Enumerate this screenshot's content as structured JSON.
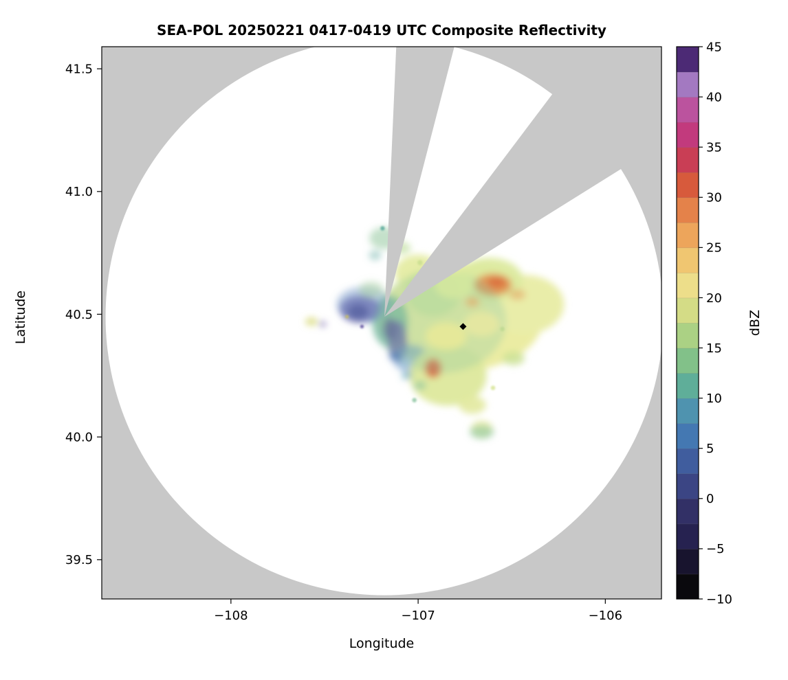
{
  "chart_data": {
    "type": "heatmap",
    "title": "SEA-POL 20250221 0417-0419 UTC Composite Reflectivity",
    "xlabel": "Longitude",
    "ylabel": "Latitude",
    "xlim": [
      -108.69,
      -105.7
    ],
    "ylim": [
      39.34,
      41.59
    ],
    "xticks": {
      "values": [
        -108,
        -107,
        -106
      ],
      "labels": [
        "−108",
        "−107",
        "−106"
      ]
    },
    "yticks": {
      "values": [
        39.5,
        40.0,
        40.5,
        41.0,
        41.5
      ],
      "labels": [
        "39.5",
        "40.0",
        "40.5",
        "41.0",
        "41.5"
      ]
    },
    "background_color": "#c8c8c8",
    "coverage": {
      "center_lon": -107.18,
      "center_lat": 40.49,
      "radius_lat_deg": 1.135,
      "fill": "#ffffff"
    },
    "blocked_sectors": [
      {
        "az_start": 2.5,
        "az_end": 14.5
      },
      {
        "az_start": 37.0,
        "az_end": 58.0
      }
    ],
    "site_marker": {
      "lon": -106.76,
      "lat": 40.45,
      "color": "#000000",
      "size": 5
    },
    "colorbar": {
      "label": "dBZ",
      "min": -10,
      "max": 45,
      "ticks": {
        "values": [
          -10,
          -5,
          0,
          5,
          10,
          15,
          20,
          25,
          30,
          35,
          40,
          45
        ],
        "labels": [
          "−10",
          "−5",
          "0",
          "5",
          "10",
          "15",
          "20",
          "25",
          "30",
          "35",
          "40",
          "45"
        ]
      },
      "colors": [
        "#0a090d",
        "#18142e",
        "#262250",
        "#323066",
        "#3b4584",
        "#405d9e",
        "#4478b2",
        "#4f93af",
        "#5fae99",
        "#82c189",
        "#abd184",
        "#d4dc86",
        "#eddE8a",
        "#f0c671",
        "#eda55b",
        "#e4824a",
        "#d75a3c",
        "#c93e55",
        "#c23a7d",
        "#bb539e",
        "#a379c1",
        "#4c2a75"
      ]
    },
    "echoes_soft": [
      [
        -106.77,
        40.49,
        0.44,
        0.22,
        "#ebeca3",
        1.0
      ],
      [
        -106.43,
        40.54,
        0.21,
        0.12,
        "#e9eda9",
        1.0
      ],
      [
        -106.62,
        40.64,
        0.18,
        0.09,
        "#dcea9f",
        0.95
      ],
      [
        -106.6,
        40.62,
        0.1,
        0.045,
        "#e1904f",
        0.9
      ],
      [
        -106.58,
        40.63,
        0.05,
        0.022,
        "#d96c3b",
        0.85
      ],
      [
        -107.0,
        40.67,
        0.125,
        0.073,
        "#e3eb9f",
        0.9
      ],
      [
        -106.92,
        40.59,
        0.147,
        0.098,
        "#cfe69b",
        0.8
      ],
      [
        -107.15,
        40.47,
        0.096,
        0.106,
        "#6fb39b",
        0.75
      ],
      [
        -107.31,
        40.52,
        0.11,
        0.056,
        "#7b6cae",
        0.85
      ],
      [
        -107.32,
        40.51,
        0.055,
        0.031,
        "#4e4187",
        0.9
      ],
      [
        -107.29,
        40.54,
        0.147,
        0.073,
        "#6a93c5",
        0.45
      ],
      [
        -107.11,
        40.39,
        0.051,
        0.084,
        "#6f63a9",
        0.85
      ],
      [
        -107.15,
        40.44,
        0.037,
        0.045,
        "#5a4f96",
        0.8
      ],
      [
        -107.04,
        40.32,
        0.096,
        0.056,
        "#6191c6",
        0.55
      ],
      [
        -106.84,
        40.25,
        0.206,
        0.123,
        "#dde89c",
        0.95
      ],
      [
        -106.92,
        40.28,
        0.044,
        0.039,
        "#dd6540",
        0.95
      ],
      [
        -106.88,
        40.47,
        0.35,
        0.21,
        "#8cc6a4",
        0.3
      ],
      [
        -106.71,
        40.13,
        0.073,
        0.036,
        "#e2e99e",
        0.9
      ],
      [
        -106.66,
        40.03,
        0.059,
        0.036,
        "#e9eca6",
        0.95
      ],
      [
        -106.66,
        40.02,
        0.066,
        0.028,
        "#7bbfa6",
        0.5
      ],
      [
        -106.49,
        40.32,
        0.059,
        0.028,
        "#cbe295",
        0.85
      ],
      [
        -107.18,
        40.81,
        0.081,
        0.045,
        "#93c89e",
        0.55
      ],
      [
        -107.09,
        40.77,
        0.051,
        0.025,
        "#b8da91",
        0.6
      ],
      [
        -107.23,
        40.74,
        0.033,
        0.02,
        "#6fb3ab",
        0.5
      ],
      [
        -107.57,
        40.47,
        0.033,
        0.017,
        "#d8d978",
        0.8
      ],
      [
        -107.51,
        40.46,
        0.018,
        0.011,
        "#8071b2",
        0.8
      ],
      [
        -106.71,
        40.55,
        0.037,
        0.02,
        "#e6a263",
        0.6
      ],
      [
        -106.47,
        40.58,
        0.044,
        0.022,
        "#e4a05e",
        0.55
      ],
      [
        -106.85,
        40.41,
        0.11,
        0.056,
        "#f0eb94",
        0.7
      ],
      [
        -106.66,
        40.46,
        0.096,
        0.05,
        "#eee9a0",
        0.7
      ],
      [
        -107.13,
        40.33,
        0.026,
        0.017,
        "#4f7ab8",
        0.7
      ],
      [
        -107.06,
        40.25,
        0.029,
        0.017,
        "#58a0b8",
        0.6
      ],
      [
        -106.99,
        40.21,
        0.033,
        0.017,
        "#7fc0a0",
        0.6
      ],
      [
        -106.81,
        40.62,
        0.103,
        0.056,
        "#d6e89d",
        0.8
      ],
      [
        -107.25,
        40.6,
        0.066,
        0.034,
        "#a8cfa0",
        0.5
      ]
    ],
    "echoes_specks": [
      [
        -107.19,
        40.85,
        0.012,
        "#5fae9e",
        0.9
      ],
      [
        -107.13,
        40.83,
        0.01,
        "#8cc4a0",
        0.8
      ],
      [
        -106.99,
        40.71,
        0.014,
        "#cce092",
        0.9
      ],
      [
        -107.3,
        40.45,
        0.01,
        "#6a5ca5",
        0.9
      ],
      [
        -107.02,
        40.15,
        0.012,
        "#8cc4a0",
        0.8
      ],
      [
        -106.6,
        40.2,
        0.012,
        "#d9e79b",
        0.9
      ],
      [
        -106.55,
        40.44,
        0.012,
        "#bcd88e",
        0.8
      ],
      [
        -107.38,
        40.49,
        0.01,
        "#c8bf60",
        0.8
      ]
    ]
  }
}
